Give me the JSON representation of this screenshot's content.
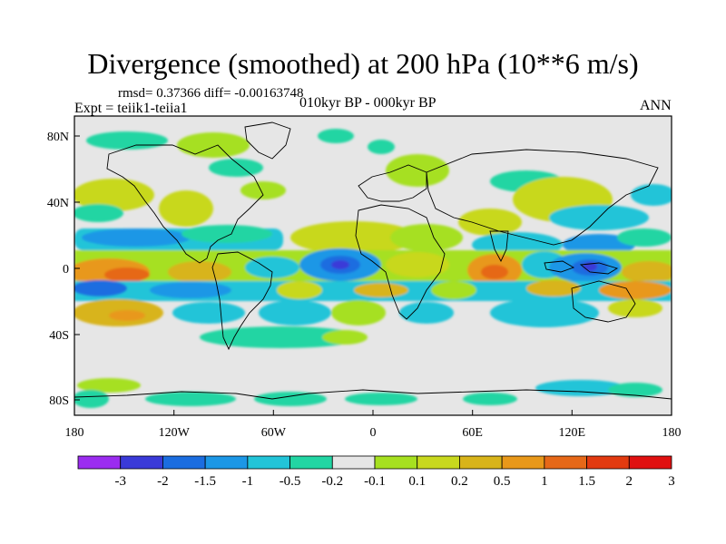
{
  "title": "Divergence (smoothed) at 200 hPa (10**6 m/s)",
  "stats": "rmsd= 0.37366 diff= -0.00163748",
  "experiment": "Expt = teiik1-teiia1",
  "subtitle": "010kyr BP - 000kyr BP",
  "season": "ANN",
  "map": {
    "lat_ticks": [
      "80N",
      "40N",
      "0",
      "40S",
      "80S"
    ],
    "lon_ticks": [
      "180",
      "120W",
      "60W",
      "0",
      "60E",
      "120E",
      "180"
    ],
    "background_color": "#e6e6e6"
  },
  "colorbar": {
    "colors": [
      "#9b2cf0",
      "#3a3ad8",
      "#1b6de0",
      "#1c97e6",
      "#22c4d8",
      "#22d5a3",
      "#e6e6e6",
      "#a6e020",
      "#c8d81e",
      "#d8b41a",
      "#e8981a",
      "#e66818",
      "#e23a10",
      "#e01010"
    ],
    "labels": [
      "-3",
      "-2",
      "-1.5",
      "-1",
      "-0.5",
      "-0.2",
      "-0.1",
      "0.1",
      "0.2",
      "0.5",
      "1",
      "1.5",
      "2",
      "3"
    ]
  }
}
